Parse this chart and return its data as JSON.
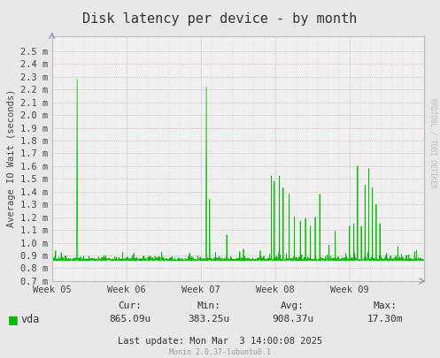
{
  "title": "Disk latency per device - by month",
  "ylabel": "Average IO Wait (seconds)",
  "bg_color": "#e8e8e8",
  "plot_bg_color": "#f0f0f0",
  "line_color": "#00bb00",
  "grid_color_h": "#dd8888",
  "grid_color_v": "#aaaacc",
  "ytick_labels": [
    "0.7 m",
    "0.8 m",
    "0.9 m",
    "1.0 m",
    "1.1 m",
    "1.2 m",
    "1.3 m",
    "1.4 m",
    "1.5 m",
    "1.6 m",
    "1.7 m",
    "1.8 m",
    "1.9 m",
    "2.0 m",
    "2.1 m",
    "2.2 m",
    "2.3 m",
    "2.4 m",
    "2.5 m"
  ],
  "ytick_values": [
    0.0007,
    0.0008,
    0.0009,
    0.001,
    0.0011,
    0.0012,
    0.0013,
    0.0014,
    0.0015,
    0.0016,
    0.0017,
    0.0018,
    0.0019,
    0.002,
    0.0021,
    0.0022,
    0.0023,
    0.0024,
    0.0025
  ],
  "xtick_labels": [
    "Week 05",
    "Week 06",
    "Week 07",
    "Week 08",
    "Week 09"
  ],
  "legend_label": "vda",
  "legend_color": "#00bb00",
  "cur_label": "Cur:",
  "cur_value": "865.09u",
  "min_label": "Min:",
  "min_value": "383.25u",
  "avg_label": "Avg:",
  "avg_value": "908.37u",
  "max_label": "Max:",
  "max_value": "17.30m",
  "last_update": "Last update: Mon Mar  3 14:00:08 2025",
  "munin_label": "Munin 2.0.37-1ubuntu0.1",
  "rrdtool_label": "RRDTOOL / TOBI OETIKER",
  "ymin": 0.0007,
  "ymax": 0.00262,
  "baseline": 0.00086,
  "title_fontsize": 11,
  "axis_fontsize": 7.5,
  "tick_fontsize": 7.5,
  "legend_fontsize": 8.5,
  "stats_fontsize": 8
}
